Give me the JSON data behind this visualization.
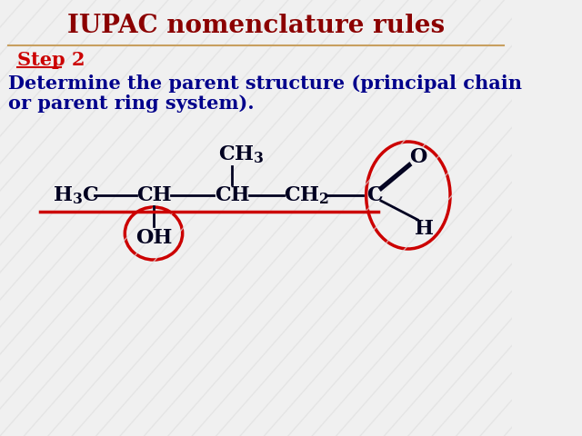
{
  "title": "IUPAC nomenclature rules",
  "title_color": "#8B0000",
  "title_fontsize": 20,
  "step_label": "Step 2",
  "step_color": "#CC0000",
  "step_fontsize": 15,
  "body_text_line1": "Determine the parent structure (principal chain",
  "body_text_line2": "or parent ring system).",
  "body_fontsize": 15,
  "body_color": "#00008B",
  "bg_color": "#f0f0f0",
  "stripe_color": "#e0e0e0",
  "sep_line_color": "#C8A060",
  "molecule_color": "#000020",
  "circle_color": "#CC0000",
  "highlight_line_color": "#CC0000",
  "mol_fontsize": 16
}
